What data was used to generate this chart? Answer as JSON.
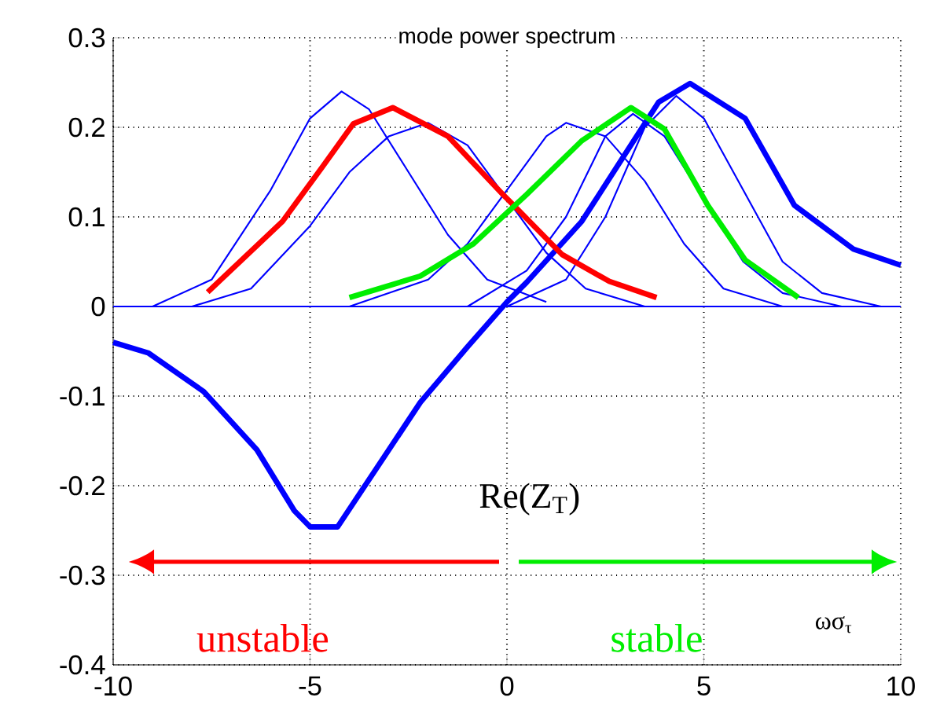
{
  "chart_data": {
    "type": "line",
    "title": "mode power spectrum",
    "xlabel": "ωσ$_{τ}$",
    "xlim": [
      -10,
      10
    ],
    "ylim": [
      -0.4,
      0.3
    ],
    "xticks": [
      -10,
      -5,
      0,
      5,
      10
    ],
    "yticks": [
      -0.4,
      -0.3,
      -0.2,
      -0.1,
      0,
      0.1,
      0.2,
      0.3
    ],
    "grid": true,
    "annotations": [
      "unstable",
      "stable"
    ],
    "ref_lines": [
      {
        "axis": "y",
        "value": 0,
        "color": "#0000ff"
      }
    ],
    "series": [
      {
        "color": "#0000ff",
        "x": [
          -9,
          -7.5,
          -6,
          -5,
          -4.2,
          -3.5,
          -2.5,
          -1.5,
          -0.5,
          1
        ],
        "values": [
          0,
          0.03,
          0.13,
          0.21,
          0.24,
          0.22,
          0.15,
          0.08,
          0.03,
          0.005
        ]
      },
      {
        "color": "#0000ff",
        "x": [
          -8,
          -6.5,
          -5,
          -4,
          -3,
          -2,
          -1,
          0,
          1,
          2,
          3.5
        ],
        "values": [
          0,
          0.02,
          0.09,
          0.15,
          0.19,
          0.205,
          0.18,
          0.12,
          0.06,
          0.02,
          0
        ]
      },
      {
        "color": "#0000ff",
        "x": [
          -4,
          -2,
          -1,
          0,
          1,
          1.5,
          2.5,
          3.5,
          4.5,
          5.5,
          7
        ],
        "values": [
          0,
          0.03,
          0.07,
          0.13,
          0.19,
          0.205,
          0.19,
          0.14,
          0.07,
          0.02,
          0
        ]
      },
      {
        "color": "#0000ff",
        "x": [
          -1,
          0.5,
          1.5,
          2.5,
          3.2,
          4,
          5,
          6,
          7,
          8.5
        ],
        "values": [
          0,
          0.04,
          0.1,
          0.19,
          0.215,
          0.19,
          0.12,
          0.05,
          0.015,
          0
        ]
      },
      {
        "color": "#0000ff",
        "x": [
          0,
          1.5,
          2.5,
          3.5,
          4.3,
          5,
          6,
          7,
          8,
          9.5
        ],
        "values": [
          0,
          0.03,
          0.1,
          0.2,
          0.235,
          0.21,
          0.13,
          0.05,
          0.015,
          0
        ]
      },
      {
        "name": "Re(Z$_{T}$)",
        "color": "#0000ff",
        "x": [
          -10,
          -9.1,
          -7.7,
          -6.35,
          -5.4,
          -5,
          -4.3,
          -3,
          -2.2,
          -1,
          0,
          0.5,
          1.9,
          3,
          3.85,
          4.65,
          6.05,
          7.3,
          8.8,
          10
        ],
        "values": [
          -0.04,
          -0.052,
          -0.095,
          -0.16,
          -0.228,
          -0.246,
          -0.246,
          -0.16,
          -0.107,
          -0.045,
          0.005,
          0.027,
          0.095,
          0.17,
          0.228,
          0.249,
          0.21,
          0.113,
          0.064,
          0.046
        ]
      },
      {
        "color": "#ff0000",
        "x": [
          -7.6,
          -5.7,
          -4.7,
          -3.9,
          -2.9,
          -1.5,
          -0.1,
          1.4,
          2.6,
          3.8
        ],
        "values": [
          0.016,
          0.095,
          0.155,
          0.204,
          0.222,
          0.19,
          0.125,
          0.058,
          0.028,
          0.01
        ]
      },
      {
        "color": "#00ee00",
        "x": [
          -4,
          -2.2,
          -0.85,
          0.5,
          1.9,
          3.15,
          4,
          5.1,
          6.05,
          7.4
        ],
        "values": [
          0.01,
          0.034,
          0.07,
          0.125,
          0.185,
          0.222,
          0.198,
          0.113,
          0.052,
          0.01
        ]
      }
    ]
  }
}
